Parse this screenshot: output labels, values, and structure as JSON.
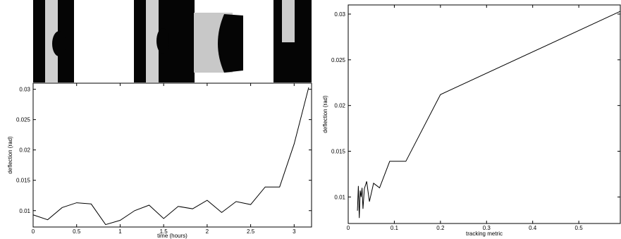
{
  "chart_data": [
    {
      "type": "line",
      "x_label": "time (hours)",
      "y_label": "deflection (rad)",
      "color": "#000000",
      "x": [
        0,
        0.167,
        0.333,
        0.5,
        0.667,
        0.833,
        1.0,
        1.167,
        1.333,
        1.5,
        1.667,
        1.833,
        2.0,
        2.167,
        2.333,
        2.5,
        2.667,
        2.833,
        3.0,
        3.167
      ],
      "values": [
        0.0093,
        0.0085,
        0.0105,
        0.0113,
        0.0111,
        0.0077,
        0.0084,
        0.01,
        0.0109,
        0.0087,
        0.0107,
        0.0103,
        0.0117,
        0.0097,
        0.0115,
        0.011,
        0.0139,
        0.0139,
        0.021,
        0.0303
      ],
      "xlim": [
        0,
        3.2
      ],
      "ylim": [
        0.0073,
        0.031
      ],
      "xticks": [
        0,
        0.5,
        1,
        1.5,
        2,
        2.5,
        3
      ],
      "yticks": [
        0.01,
        0.015,
        0.02,
        0.025,
        0.03
      ]
    },
    {
      "type": "line",
      "x_label": "tracking metric",
      "y_label": "deflection (rad)",
      "color": "#000000",
      "x": [
        0.02,
        0.022,
        0.024,
        0.026,
        0.028,
        0.03,
        0.032,
        0.035,
        0.04,
        0.046,
        0.055,
        0.068,
        0.09,
        0.125,
        0.2,
        0.59
      ],
      "values": [
        0.0085,
        0.0112,
        0.0077,
        0.0107,
        0.01,
        0.011,
        0.0087,
        0.0109,
        0.0117,
        0.0095,
        0.0115,
        0.011,
        0.0139,
        0.0139,
        0.0212,
        0.0303
      ],
      "xlim": [
        0,
        0.59
      ],
      "ylim": [
        0.0071,
        0.031
      ],
      "xticks": [
        0,
        0.1,
        0.2,
        0.3,
        0.4,
        0.5
      ],
      "yticks": [
        0.01,
        0.015,
        0.02,
        0.025,
        0.03
      ]
    }
  ]
}
